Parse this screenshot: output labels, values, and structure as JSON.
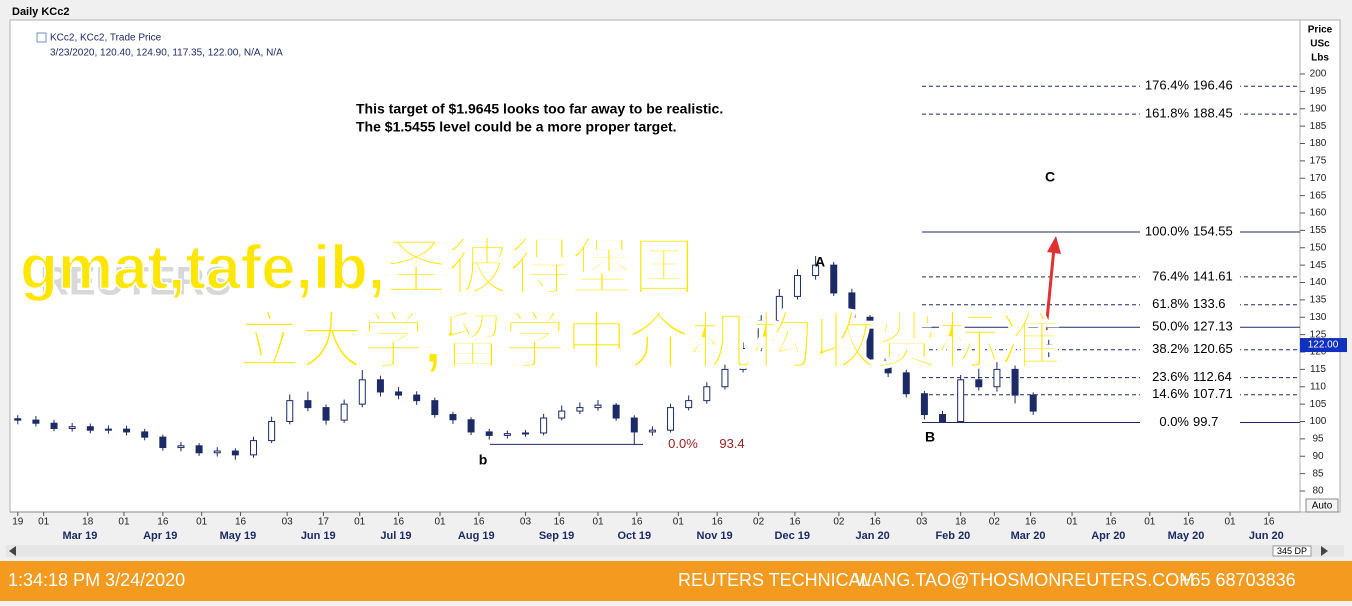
{
  "header": {
    "title": "Daily KCc2",
    "legend_name": "KCc2, KCc2, Trade Price",
    "legend_values": "3/23/2020, 120.40, 124.90, 117.35, 122.00, N/A, N/A"
  },
  "chart_data": {
    "type": "candlestick",
    "x": [
      "2019-02-19",
      "2019-02-26",
      "2019-03-05",
      "2019-03-12",
      "2019-03-19",
      "2019-03-26",
      "2019-04-02",
      "2019-04-09",
      "2019-04-16",
      "2019-04-23",
      "2019-04-30",
      "2019-05-07",
      "2019-05-14",
      "2019-05-21",
      "2019-05-28",
      "2019-06-04",
      "2019-06-11",
      "2019-06-18",
      "2019-06-25",
      "2019-07-02",
      "2019-07-09",
      "2019-07-16",
      "2019-07-23",
      "2019-07-30",
      "2019-08-06",
      "2019-08-13",
      "2019-08-20",
      "2019-08-27",
      "2019-09-03",
      "2019-09-10",
      "2019-09-17",
      "2019-09-24",
      "2019-10-01",
      "2019-10-08",
      "2019-10-15",
      "2019-10-22",
      "2019-10-29",
      "2019-11-05",
      "2019-11-12",
      "2019-11-19",
      "2019-11-26",
      "2019-12-03",
      "2019-12-10",
      "2019-12-17",
      "2019-12-24",
      "2019-12-31",
      "2020-01-07",
      "2020-01-14",
      "2020-01-21",
      "2020-01-28",
      "2020-02-04",
      "2020-02-11",
      "2020-02-18",
      "2020-02-25",
      "2020-03-03",
      "2020-03-10",
      "2020-03-17",
      "2020-03-23"
    ],
    "open": [
      100.8,
      100.4,
      99.5,
      98.0,
      98.5,
      97.5,
      97.8,
      97.0,
      95.5,
      92.5,
      93.0,
      91.0,
      91.5,
      90.4,
      94.5,
      100.0,
      106.0,
      104.0,
      100.4,
      105.0,
      112.0,
      108.5,
      107.6,
      106.0,
      102.0,
      100.5,
      97.0,
      96.0,
      96.5,
      96.7,
      101.0,
      103.0,
      104.0,
      104.7,
      101.0,
      97.0,
      97.5,
      104.0,
      106.0,
      110.0,
      115.0,
      121.0,
      129.0,
      136.0,
      142.0,
      145.0,
      137.0,
      130.0,
      118.0,
      114.0,
      108.0,
      102.0,
      100.0,
      112.0,
      110.0,
      115.0,
      107.6,
      120.4
    ],
    "high": [
      101.8,
      101.6,
      100.5,
      99.6,
      99.4,
      98.9,
      98.8,
      97.9,
      96.2,
      94.1,
      93.8,
      92.6,
      92.3,
      95.6,
      101.4,
      107.8,
      108.6,
      104.9,
      106.3,
      114.8,
      113.2,
      109.9,
      108.7,
      106.9,
      102.8,
      101.2,
      97.9,
      97.4,
      97.6,
      102.2,
      104.6,
      105.5,
      106.2,
      105.3,
      101.8,
      98.6,
      105.1,
      107.5,
      111.3,
      116.4,
      122.8,
      130.6,
      138.1,
      143.8,
      147.6,
      145.9,
      138.2,
      130.7,
      119.3,
      114.9,
      108.8,
      103.1,
      113.4,
      116.5,
      118.9,
      116.1,
      108.4,
      124.9
    ],
    "low": [
      99.2,
      98.6,
      97.2,
      97.1,
      96.6,
      96.5,
      96.0,
      94.6,
      91.6,
      91.4,
      90.1,
      89.9,
      89.0,
      89.6,
      93.8,
      99.2,
      103.0,
      99.1,
      99.6,
      104.1,
      107.2,
      106.4,
      104.8,
      101.1,
      99.3,
      96.1,
      94.8,
      95.1,
      95.6,
      96.0,
      100.3,
      102.1,
      103.1,
      100.2,
      93.4,
      95.9,
      96.8,
      103.2,
      105.1,
      109.2,
      114.1,
      120.2,
      128.0,
      135.1,
      140.8,
      136.1,
      128.9,
      117.1,
      112.8,
      106.9,
      100.6,
      99.7,
      99.8,
      108.9,
      108.6,
      105.2,
      101.9,
      117.35
    ],
    "close": [
      100.4,
      99.5,
      98.0,
      98.5,
      97.5,
      97.8,
      97.0,
      95.5,
      92.5,
      93.0,
      91.0,
      91.5,
      90.4,
      94.5,
      100.0,
      106.0,
      104.0,
      100.4,
      105.0,
      112.0,
      108.5,
      107.6,
      106.0,
      102.0,
      100.5,
      97.0,
      96.0,
      96.5,
      96.7,
      101.0,
      103.0,
      104.0,
      104.7,
      101.0,
      97.0,
      97.5,
      104.0,
      106.0,
      110.0,
      115.0,
      121.0,
      129.0,
      136.0,
      142.0,
      145.0,
      137.0,
      130.0,
      118.0,
      114.0,
      108.0,
      102.0,
      100.0,
      112.0,
      110.0,
      115.0,
      107.6,
      103.0,
      122.0
    ],
    "color": "#1c2a66",
    "xlim": [
      "2019-02-16",
      "2020-06-28"
    ],
    "xticks": [
      {
        "value": "2019-02-19",
        "label": "19"
      },
      {
        "value": "2019-03-01",
        "label": "01"
      },
      {
        "value": "2019-03-18",
        "label": "18"
      },
      {
        "value": "2019-04-01",
        "label": "01"
      },
      {
        "value": "2019-04-16",
        "label": "16"
      },
      {
        "value": "2019-05-01",
        "label": "01"
      },
      {
        "value": "2019-05-16",
        "label": "16"
      },
      {
        "value": "2019-06-03",
        "label": "03"
      },
      {
        "value": "2019-06-17",
        "label": "17"
      },
      {
        "value": "2019-07-01",
        "label": "01"
      },
      {
        "value": "2019-07-16",
        "label": "16"
      },
      {
        "value": "2019-08-01",
        "label": "01"
      },
      {
        "value": "2019-08-16",
        "label": "16"
      },
      {
        "value": "2019-09-03",
        "label": "03"
      },
      {
        "value": "2019-09-16",
        "label": "16"
      },
      {
        "value": "2019-10-01",
        "label": "01"
      },
      {
        "value": "2019-10-16",
        "label": "16"
      },
      {
        "value": "2019-11-01",
        "label": "01"
      },
      {
        "value": "2019-11-16",
        "label": "16"
      },
      {
        "value": "2019-12-02",
        "label": "02"
      },
      {
        "value": "2019-12-16",
        "label": "16"
      },
      {
        "value": "2020-01-02",
        "label": "02"
      },
      {
        "value": "2020-01-16",
        "label": "16"
      },
      {
        "value": "2020-02-03",
        "label": "03"
      },
      {
        "value": "2020-02-18",
        "label": "18"
      },
      {
        "value": "2020-03-02",
        "label": "02"
      },
      {
        "value": "2020-03-16",
        "label": "16"
      },
      {
        "value": "2020-04-01",
        "label": "01"
      },
      {
        "value": "2020-04-16",
        "label": "16"
      },
      {
        "value": "2020-05-01",
        "label": "01"
      },
      {
        "value": "2020-05-16",
        "label": "16"
      },
      {
        "value": "2020-06-01",
        "label": "01"
      },
      {
        "value": "2020-06-16",
        "label": "16"
      }
    ],
    "month_labels": [
      {
        "value": "2019-03",
        "label": "Mar 19"
      },
      {
        "value": "2019-04",
        "label": "Apr 19"
      },
      {
        "value": "2019-05",
        "label": "May 19"
      },
      {
        "value": "2019-06",
        "label": "Jun 19"
      },
      {
        "value": "2019-07",
        "label": "Jul 19"
      },
      {
        "value": "2019-08",
        "label": "Aug 19"
      },
      {
        "value": "2019-09",
        "label": "Sep 19"
      },
      {
        "value": "2019-10",
        "label": "Oct 19"
      },
      {
        "value": "2019-11",
        "label": "Nov 19"
      },
      {
        "value": "2019-12",
        "label": "Dec 19"
      },
      {
        "value": "2020-01",
        "label": "Jan 20"
      },
      {
        "value": "2020-02",
        "label": "Feb 20"
      },
      {
        "value": "2020-03",
        "label": "Mar 20"
      },
      {
        "value": "2020-04",
        "label": "Apr 20"
      },
      {
        "value": "2020-05",
        "label": "May 20"
      },
      {
        "value": "2020-06",
        "label": "Jun 20"
      }
    ],
    "ylim": [
      80,
      200
    ],
    "yticks": [
      80,
      85,
      90,
      95,
      100,
      105,
      110,
      115,
      120,
      125,
      130,
      135,
      140,
      145,
      150,
      155,
      160,
      165,
      170,
      175,
      180,
      185,
      190,
      195,
      200
    ],
    "y_axis_title": [
      "Price",
      "USc",
      "Lbs"
    ],
    "last_price": {
      "value": 122,
      "label": "122.00"
    },
    "fib_levels": [
      {
        "pct": "176.4%",
        "price": 196.46
      },
      {
        "pct": "161.8%",
        "price": 188.45
      },
      {
        "pct": "100.0%",
        "price": 154.55
      },
      {
        "pct": "76.4%",
        "price": 141.61
      },
      {
        "pct": "61.8%",
        "price": 133.6
      },
      {
        "pct": "50.0%",
        "price": 127.13
      },
      {
        "pct": "38.2%",
        "price": 120.65
      },
      {
        "pct": "23.6%",
        "price": 112.64
      },
      {
        "pct": "14.6%",
        "price": 107.71
      },
      {
        "pct": "0.0%",
        "price": 99.7
      }
    ],
    "fib_left": {
      "pct": "0.0%",
      "price": 93.4
    },
    "point_labels": [
      "b",
      "B",
      "A",
      "C"
    ],
    "annotation": [
      "This target of $1.9645 looks too far away to be realistic.",
      "The $1.5455 level could be a more proper target."
    ],
    "auto_button": "Auto",
    "scroll_label": "345 DP"
  },
  "watermark": {
    "logo": "REUTERS",
    "text": [
      "gmat,tafe,ib,圣彼得堡国",
      "立大学,留学中介机构收费标准"
    ]
  },
  "status_bar": {
    "time": "1:34:18 PM 3/24/2020",
    "source": "REUTERS TECHNICAL",
    "email": "WANG.TAO@THOSMONREUTERS.COM",
    "phone": "+65 68703836"
  }
}
